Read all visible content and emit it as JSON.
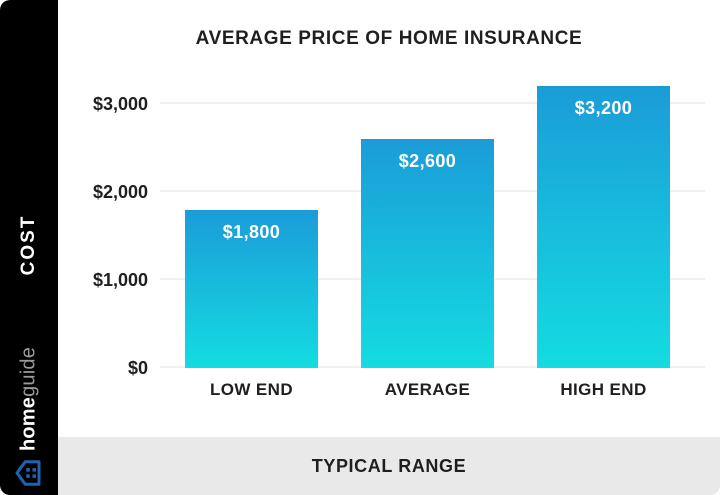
{
  "sidebar": {
    "cost_label": "COST",
    "brand_bold": "home",
    "brand_light": "guide",
    "bg": "#000000",
    "icon_color": "#1d64b5"
  },
  "chart_data": {
    "type": "bar",
    "title": "AVERAGE PRICE OF HOME INSURANCE",
    "categories": [
      "LOW END",
      "AVERAGE",
      "HIGH END"
    ],
    "values": [
      1800,
      2600,
      3200
    ],
    "value_labels": [
      "$1,800",
      "$2,600",
      "$3,200"
    ],
    "y_ticks": [
      {
        "label": "$3,000",
        "value": 3000
      },
      {
        "label": "$2,000",
        "value": 2000
      },
      {
        "label": "$1,000",
        "value": 1000
      },
      {
        "label": "$0",
        "value": 0
      }
    ],
    "ylim": [
      0,
      3216
    ],
    "ylabel": "COST",
    "xlabel": "TYPICAL RANGE",
    "grid": true,
    "legend": false,
    "bar_gradient_top": "#1b9cd8",
    "bar_gradient_bottom": "#14dce1",
    "grid_color": "#f0f0f0",
    "value_label_color": "#ffffff",
    "text_color": "#1f1f1f"
  },
  "footer": {
    "label": "TYPICAL RANGE",
    "bg": "#e9e9e9"
  }
}
